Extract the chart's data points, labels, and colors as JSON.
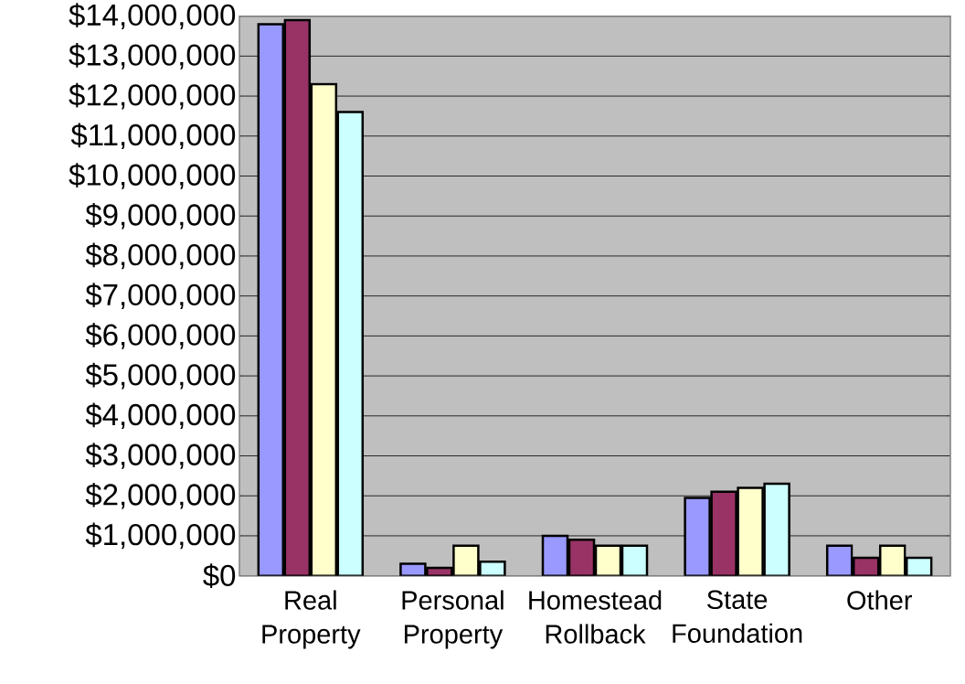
{
  "chart_data": {
    "type": "bar",
    "categories": [
      "Real Property",
      "Personal Property",
      "Homestead Rollback",
      "State Foundation",
      "Other"
    ],
    "series": [
      {
        "color": "#9999ff",
        "values": [
          13800000,
          300000,
          1000000,
          1950000,
          750000
        ]
      },
      {
        "color": "#993366",
        "values": [
          13900000,
          200000,
          900000,
          2100000,
          450000
        ]
      },
      {
        "color": "#ffffcc",
        "values": [
          12300000,
          750000,
          750000,
          2200000,
          750000
        ]
      },
      {
        "color": "#ccffff",
        "values": [
          11600000,
          350000,
          750000,
          2300000,
          450000
        ]
      }
    ],
    "ylim": [
      0,
      14000000
    ],
    "yticks": [
      {
        "value": 0,
        "label": "$0"
      },
      {
        "value": 1000000,
        "label": "$1,000,000"
      },
      {
        "value": 2000000,
        "label": "$2,000,000"
      },
      {
        "value": 3000000,
        "label": "$3,000,000"
      },
      {
        "value": 4000000,
        "label": "$4,000,000"
      },
      {
        "value": 5000000,
        "label": "$5,000,000"
      },
      {
        "value": 6000000,
        "label": "$6,000,000"
      },
      {
        "value": 7000000,
        "label": "$7,000,000"
      },
      {
        "value": 8000000,
        "label": "$8,000,000"
      },
      {
        "value": 9000000,
        "label": "$9,000,000"
      },
      {
        "value": 10000000,
        "label": "$10,000,000"
      },
      {
        "value": 11000000,
        "label": "$11,000,000"
      },
      {
        "value": 12000000,
        "label": "$12,000,000"
      },
      {
        "value": 13000000,
        "label": "$13,000,000"
      },
      {
        "value": 14000000,
        "label": "$14,000,000"
      }
    ],
    "grid": "y"
  }
}
